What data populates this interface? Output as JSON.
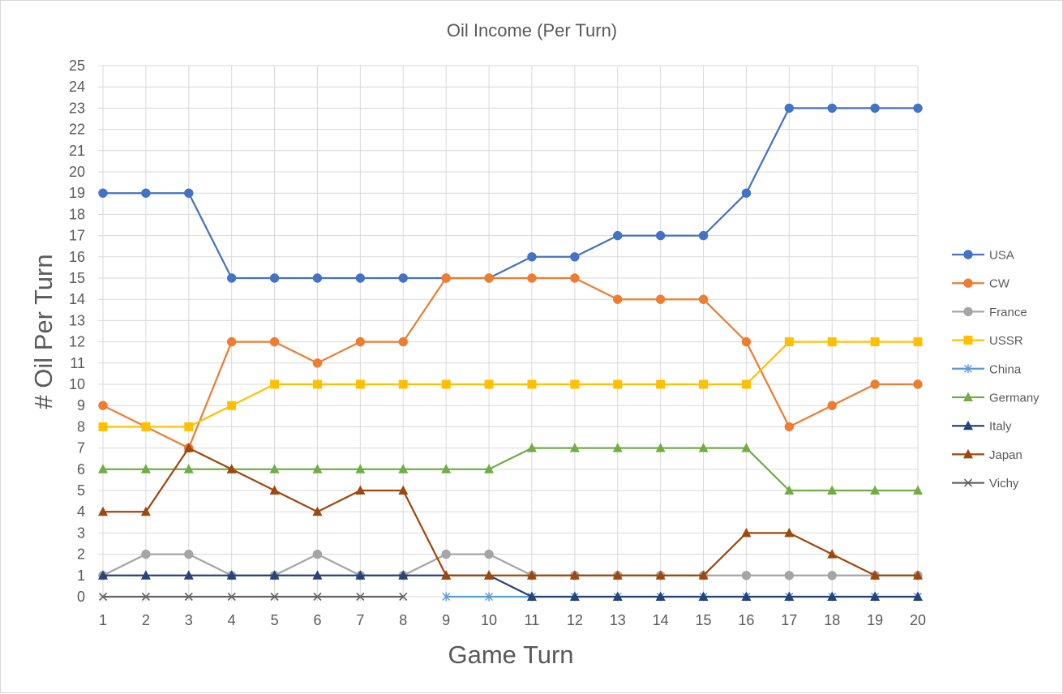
{
  "chart_data": {
    "type": "line",
    "title": "Oil Income (Per Turn)",
    "xlabel": "Game Turn",
    "ylabel": "# Oil Per Turn",
    "x": [
      1,
      2,
      3,
      4,
      5,
      6,
      7,
      8,
      9,
      10,
      11,
      12,
      13,
      14,
      15,
      16,
      17,
      18,
      19,
      20
    ],
    "xlim": [
      1,
      20
    ],
    "ylim": [
      0,
      25
    ],
    "ytick_step": 1,
    "grid": true,
    "legend_position": "right",
    "series": [
      {
        "name": "USA",
        "color": "#4472c4",
        "marker": "circle",
        "values": [
          19,
          19,
          19,
          15,
          15,
          15,
          15,
          15,
          15,
          15,
          16,
          16,
          17,
          17,
          17,
          19,
          23,
          23,
          23,
          23
        ]
      },
      {
        "name": "CW",
        "color": "#ed7d31",
        "marker": "circle",
        "values": [
          9,
          8,
          7,
          12,
          12,
          11,
          12,
          12,
          15,
          15,
          15,
          15,
          14,
          14,
          14,
          12,
          8,
          9,
          10,
          10
        ]
      },
      {
        "name": "France",
        "color": "#a5a5a5",
        "marker": "circle",
        "values": [
          1,
          2,
          2,
          1,
          1,
          2,
          1,
          1,
          2,
          2,
          1,
          1,
          1,
          1,
          1,
          1,
          1,
          1,
          1,
          1
        ]
      },
      {
        "name": "USSR",
        "color": "#ffc000",
        "marker": "square",
        "values": [
          8,
          8,
          8,
          9,
          10,
          10,
          10,
          10,
          10,
          10,
          10,
          10,
          10,
          10,
          10,
          10,
          12,
          12,
          12,
          12
        ]
      },
      {
        "name": "China",
        "color": "#5b9bd5",
        "marker": "star",
        "values": [
          null,
          null,
          null,
          null,
          null,
          null,
          null,
          null,
          0,
          0,
          0,
          0,
          0,
          0,
          0,
          0,
          0,
          0,
          0,
          0
        ]
      },
      {
        "name": "Germany",
        "color": "#70ad47",
        "marker": "triangle",
        "values": [
          6,
          6,
          6,
          6,
          6,
          6,
          6,
          6,
          6,
          6,
          7,
          7,
          7,
          7,
          7,
          7,
          5,
          5,
          5,
          5
        ]
      },
      {
        "name": "Italy",
        "color": "#264478",
        "marker": "triangle",
        "values": [
          1,
          1,
          1,
          1,
          1,
          1,
          1,
          1,
          1,
          1,
          0,
          0,
          0,
          0,
          0,
          0,
          0,
          0,
          0,
          0
        ]
      },
      {
        "name": "Japan",
        "color": "#9e480e",
        "marker": "triangle",
        "values": [
          4,
          4,
          7,
          6,
          5,
          4,
          5,
          5,
          1,
          1,
          1,
          1,
          1,
          1,
          1,
          3,
          3,
          2,
          1,
          1
        ]
      },
      {
        "name": "Vichy",
        "color": "#636363",
        "marker": "x",
        "values": [
          0,
          0,
          0,
          0,
          0,
          0,
          0,
          0,
          null,
          null,
          null,
          null,
          null,
          null,
          null,
          null,
          null,
          null,
          null,
          null
        ]
      }
    ]
  }
}
